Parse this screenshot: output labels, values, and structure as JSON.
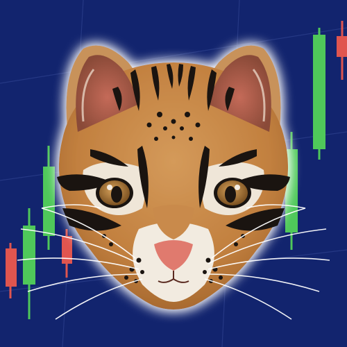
{
  "colors": {
    "background": "#12246e",
    "grid": "#2a3d8a",
    "candle_up": "#4fc85a",
    "candle_down": "#e0554f",
    "fur_orange": "#c98a4b",
    "fur_light": "#efe6d8",
    "spots": "#1a1410",
    "nose": "#e07a6e",
    "eye": "#a8763a",
    "glow": "#ffffff"
  },
  "icons": {
    "mascot": "ocelot-face-icon",
    "backdrop": "candlestick-chart-icon"
  }
}
